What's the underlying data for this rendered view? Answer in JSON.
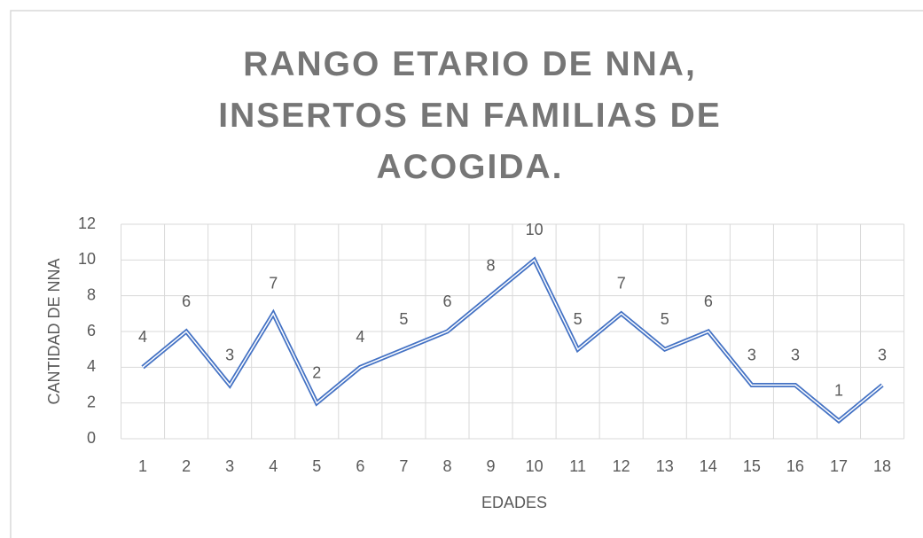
{
  "chart_data": {
    "type": "line",
    "title": "RANGO ETARIO DE NNA, INSERTOS EN FAMILIAS DE ACOGIDA.",
    "x_label": "EDADES",
    "y_label": "CANTIDAD DE NNA",
    "categories": [
      "1",
      "2",
      "3",
      "4",
      "5",
      "6",
      "7",
      "8",
      "9",
      "10",
      "11",
      "12",
      "13",
      "14",
      "15",
      "16",
      "17",
      "18"
    ],
    "values": [
      4,
      6,
      3,
      7,
      2,
      4,
      5,
      6,
      8,
      10,
      5,
      7,
      5,
      6,
      3,
      3,
      1,
      3
    ],
    "color": "#4472c4",
    "ylim": [
      0,
      12
    ],
    "yticks": [
      0,
      2,
      4,
      6,
      8,
      10,
      12
    ],
    "grid": true
  }
}
